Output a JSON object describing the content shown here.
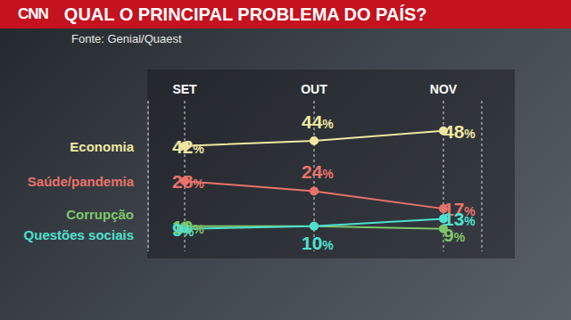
{
  "chart_data": {
    "type": "line",
    "title": "QUAL O PRINCIPAL PROBLEMA DO PAÍS?",
    "source": "Fonte: Genial/Quaest",
    "logo": "CNN",
    "categories": [
      "SET",
      "OUT",
      "NOV"
    ],
    "series": [
      {
        "name": "Economia",
        "color": "#efe7a2",
        "values": [
          42,
          44,
          48
        ],
        "value_labels": [
          "42%",
          "44%",
          "48%"
        ]
      },
      {
        "name": "Saúde/pandemia",
        "color": "#e8736b",
        "values": [
          28,
          24,
          17
        ],
        "value_labels": [
          "28%",
          "24%",
          "17%"
        ]
      },
      {
        "name": "Corrupção",
        "color": "#7fc66a",
        "values": [
          10,
          10,
          9
        ],
        "value_labels": [
          "10%",
          null,
          "9%"
        ]
      },
      {
        "name": "Questões sociais",
        "color": "#4fe0cf",
        "values": [
          9,
          10,
          13
        ],
        "value_labels": [
          "9%",
          "10%",
          "13%"
        ]
      }
    ],
    "ylim": [
      0,
      60
    ],
    "yticks": [],
    "grid": true,
    "data_labels": true,
    "tick_labels": "x",
    "marker": "circle"
  }
}
